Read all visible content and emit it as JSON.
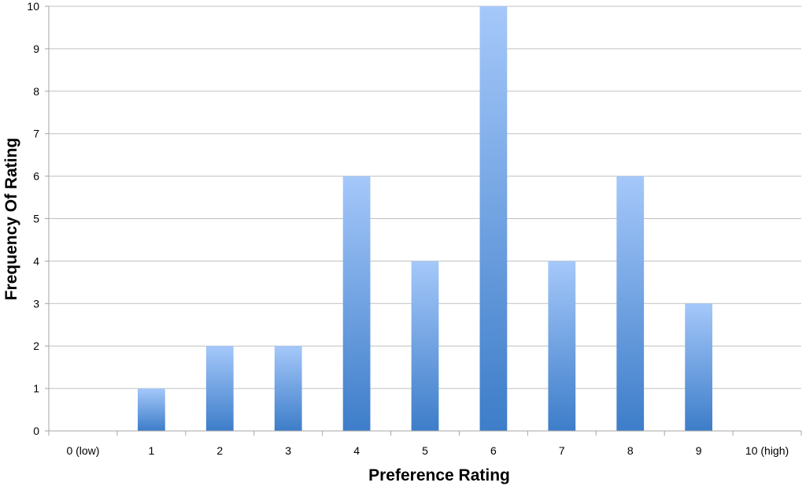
{
  "chart_data": {
    "type": "bar",
    "title": "",
    "xlabel": "Preference Rating",
    "ylabel": "Frequency Of Rating",
    "categories": [
      "0 (low)",
      "1",
      "2",
      "3",
      "4",
      "5",
      "6",
      "7",
      "8",
      "9",
      "10 (high)"
    ],
    "values": [
      0,
      1,
      2,
      2,
      6,
      4,
      10,
      4,
      6,
      3,
      0
    ],
    "ylim": [
      0,
      10
    ],
    "yticks": [
      "0",
      "1",
      "2",
      "3",
      "4",
      "5",
      "6",
      "7",
      "8",
      "9",
      "10"
    ],
    "grid": true,
    "legend": "none",
    "colors": {
      "bar_top": "#a5c8fa",
      "bar_bottom": "#3d7dc9",
      "grid": "#c0c0c0",
      "axis": "#a6a6a6"
    }
  }
}
